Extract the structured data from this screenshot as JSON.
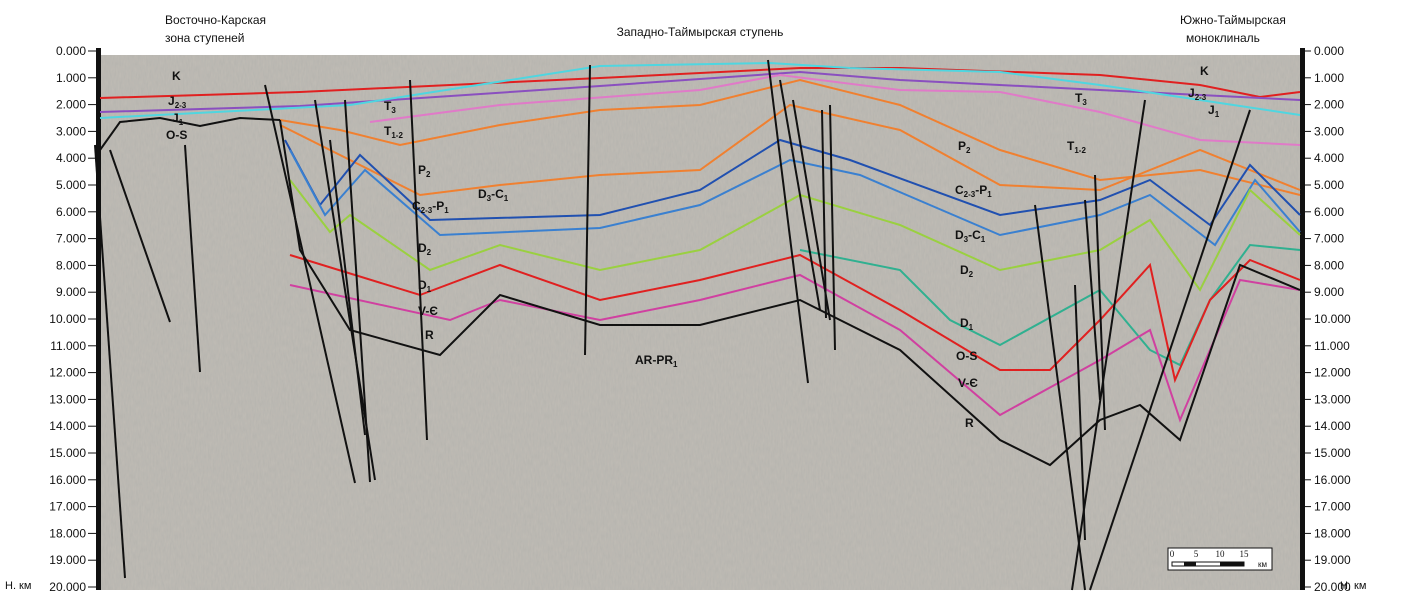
{
  "regions": {
    "west": [
      "Восточно-Карская",
      "зона ступеней"
    ],
    "center": "Западно-Таймырская ступень",
    "east": [
      "Южно-Таймырская",
      "моноклиналь"
    ]
  },
  "left_axis": {
    "unit": "Н. км",
    "ticks": [
      "0.000",
      "1.000",
      "2.000",
      "3.000",
      "4.000",
      "5.000",
      "6.000",
      "7.000",
      "8.000",
      "9.000",
      "10.000",
      "11.000",
      "12.000",
      "13.000",
      "14.000",
      "15.000",
      "16.000",
      "17.000",
      "18.000",
      "19.000",
      "20.000"
    ]
  },
  "right_axis": {
    "unit": "Н,  км",
    "ticks": [
      "0.000",
      "1.000",
      "2.000",
      "3.000",
      "4.000",
      "5.000",
      "6.000",
      "7.000",
      "8.000",
      "9.000",
      "10.000",
      "11.000",
      "12.000",
      "13.000",
      "14.000",
      "15.000",
      "16.000",
      "17.000",
      "18.000",
      "19.000",
      "20.000"
    ]
  },
  "horizon_labels": [
    {
      "parts": [
        "K"
      ]
    },
    {
      "parts": [
        "J",
        "2-3"
      ]
    },
    {
      "parts": [
        "J",
        "1"
      ]
    },
    {
      "parts": [
        "O-S"
      ]
    },
    {
      "parts": [
        "T",
        "3"
      ]
    },
    {
      "parts": [
        "T",
        "1-2"
      ]
    },
    {
      "parts": [
        "P",
        "2"
      ]
    },
    {
      "parts": [
        "C",
        "2-3",
        "-P",
        "1"
      ]
    },
    {
      "parts": [
        "D",
        "3",
        "-C",
        "1"
      ]
    },
    {
      "parts": [
        "D",
        "2"
      ]
    },
    {
      "parts": [
        "D",
        "1"
      ]
    },
    {
      "parts": [
        "V-Є"
      ]
    },
    {
      "parts": [
        "R"
      ]
    },
    {
      "parts": [
        "AR-PR",
        "1"
      ]
    },
    {
      "parts": [
        "K"
      ]
    },
    {
      "parts": [
        "J",
        "2-3"
      ]
    },
    {
      "parts": [
        "J",
        "1"
      ]
    },
    {
      "parts": [
        "T",
        "3"
      ]
    },
    {
      "parts": [
        "P",
        "2"
      ]
    },
    {
      "parts": [
        "T",
        "1-2"
      ]
    },
    {
      "parts": [
        "C",
        "2-3",
        "-P",
        "1"
      ]
    },
    {
      "parts": [
        "D",
        "3",
        "-C",
        "1"
      ]
    },
    {
      "parts": [
        "D",
        "2"
      ]
    },
    {
      "parts": [
        "D",
        "1"
      ]
    },
    {
      "parts": [
        "O-S"
      ]
    },
    {
      "parts": [
        "V-Є"
      ]
    },
    {
      "parts": [
        "R"
      ]
    }
  ],
  "scale_bar": {
    "labels": [
      "0",
      "5",
      "10",
      "15"
    ],
    "unit": "км"
  }
}
